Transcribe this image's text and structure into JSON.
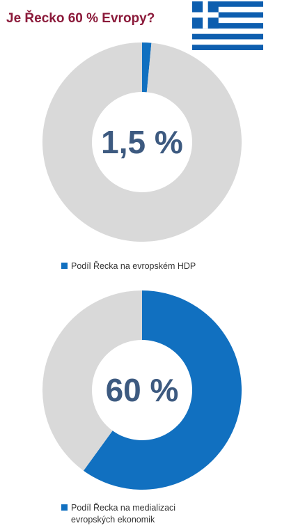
{
  "title": "Je Řecko 60 % Evropy?",
  "colors": {
    "title": "#8b1a3a",
    "share": "#1170c0",
    "rest": "#d9d9d9",
    "center_text": "#3d5a80",
    "flag_blue": "#0d5eaf"
  },
  "flag_icon": "greek-flag-icon",
  "chart_data": [
    {
      "type": "pie",
      "variant": "donut",
      "center_label": "1,5 %",
      "series": [
        {
          "name": "Podíl Řecka na evropském HDP",
          "value": 1.5,
          "color": "#1170c0"
        },
        {
          "name": "",
          "value": 98.5,
          "color": "#d9d9d9"
        }
      ],
      "legend_label": "Podíl Řecka na evropském HDP",
      "legend_position": "bottom"
    },
    {
      "type": "pie",
      "variant": "donut",
      "center_label": "60 %",
      "series": [
        {
          "name": "Podíl Řecka na medializaci evropských ekonomik",
          "value": 60,
          "color": "#1170c0"
        },
        {
          "name": "",
          "value": 40,
          "color": "#d9d9d9"
        }
      ],
      "legend_label_line1": "Podíl Řecka na medializaci",
      "legend_label_line2": "evropských ekonomik",
      "legend_position": "bottom"
    }
  ]
}
